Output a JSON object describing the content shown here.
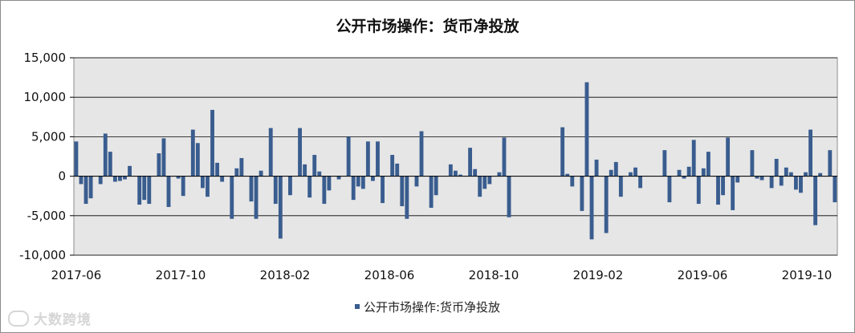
{
  "chart_data": {
    "type": "bar",
    "title": "公开市场操作：货币净投放",
    "xlabel": "",
    "ylabel": "",
    "ylim": [
      -10000,
      15000
    ],
    "yticks": [
      -10000,
      -5000,
      0,
      5000,
      10000,
      15000
    ],
    "ytick_labels": [
      "-10,000",
      "-5,000",
      "0",
      "5,000",
      "10,000",
      "15,000"
    ],
    "xtick_labels": [
      "2017-06",
      "2017-10",
      "2018-02",
      "2018-06",
      "2018-10",
      "2019-02",
      "2019-06",
      "2019-10"
    ],
    "x_start": "2017-06",
    "x_end": "2019-11",
    "legend_position": "bottom",
    "grid": true,
    "bar_color": "#3a5d8f",
    "plot_bg": "#e6e6e6",
    "series": [
      {
        "name": "公开市场操作:货币净投放",
        "values": [
          4400,
          -1000,
          -3500,
          -2800,
          0,
          -1000,
          5400,
          3100,
          -700,
          -600,
          -400,
          1300,
          0,
          -3600,
          -3000,
          -3500,
          0,
          2900,
          4800,
          -3900,
          0,
          -300,
          -2500,
          0,
          5900,
          4200,
          -1500,
          -2600,
          8400,
          1700,
          -700,
          0,
          -5400,
          1000,
          2300,
          0,
          -3200,
          -5400,
          700,
          0,
          6100,
          -3500,
          -7900,
          0,
          -2400,
          0,
          6100,
          1500,
          -2700,
          2700,
          600,
          -3500,
          -1800,
          0,
          -400,
          0,
          5000,
          -3000,
          -1300,
          -1600,
          4400,
          -600,
          4400,
          -3400,
          0,
          2700,
          1600,
          -3800,
          -5400,
          0,
          -1300,
          5700,
          0,
          -4000,
          -2400,
          0,
          0,
          1500,
          700,
          200,
          0,
          3600,
          900,
          -2600,
          -1600,
          -1000,
          0,
          500,
          4900,
          -5200,
          0,
          0,
          0,
          0,
          0,
          0,
          0,
          0,
          0,
          0,
          6200,
          300,
          -1300,
          0,
          -4400,
          11900,
          -8000,
          2100,
          0,
          -7200,
          800,
          1800,
          -2600,
          0,
          500,
          1100,
          -1500,
          0,
          0,
          0,
          0,
          3300,
          -3300,
          0,
          800,
          -300,
          1200,
          4600,
          -3500,
          1000,
          3100,
          0,
          -3600,
          -2400,
          4900,
          -4300,
          -800,
          0,
          0,
          3300,
          -300,
          -500,
          0,
          -1500,
          2200,
          -1200,
          1100,
          500,
          -1700,
          -2100,
          500,
          5900,
          -6200,
          400,
          0,
          3300,
          -3300
        ]
      }
    ]
  }
}
